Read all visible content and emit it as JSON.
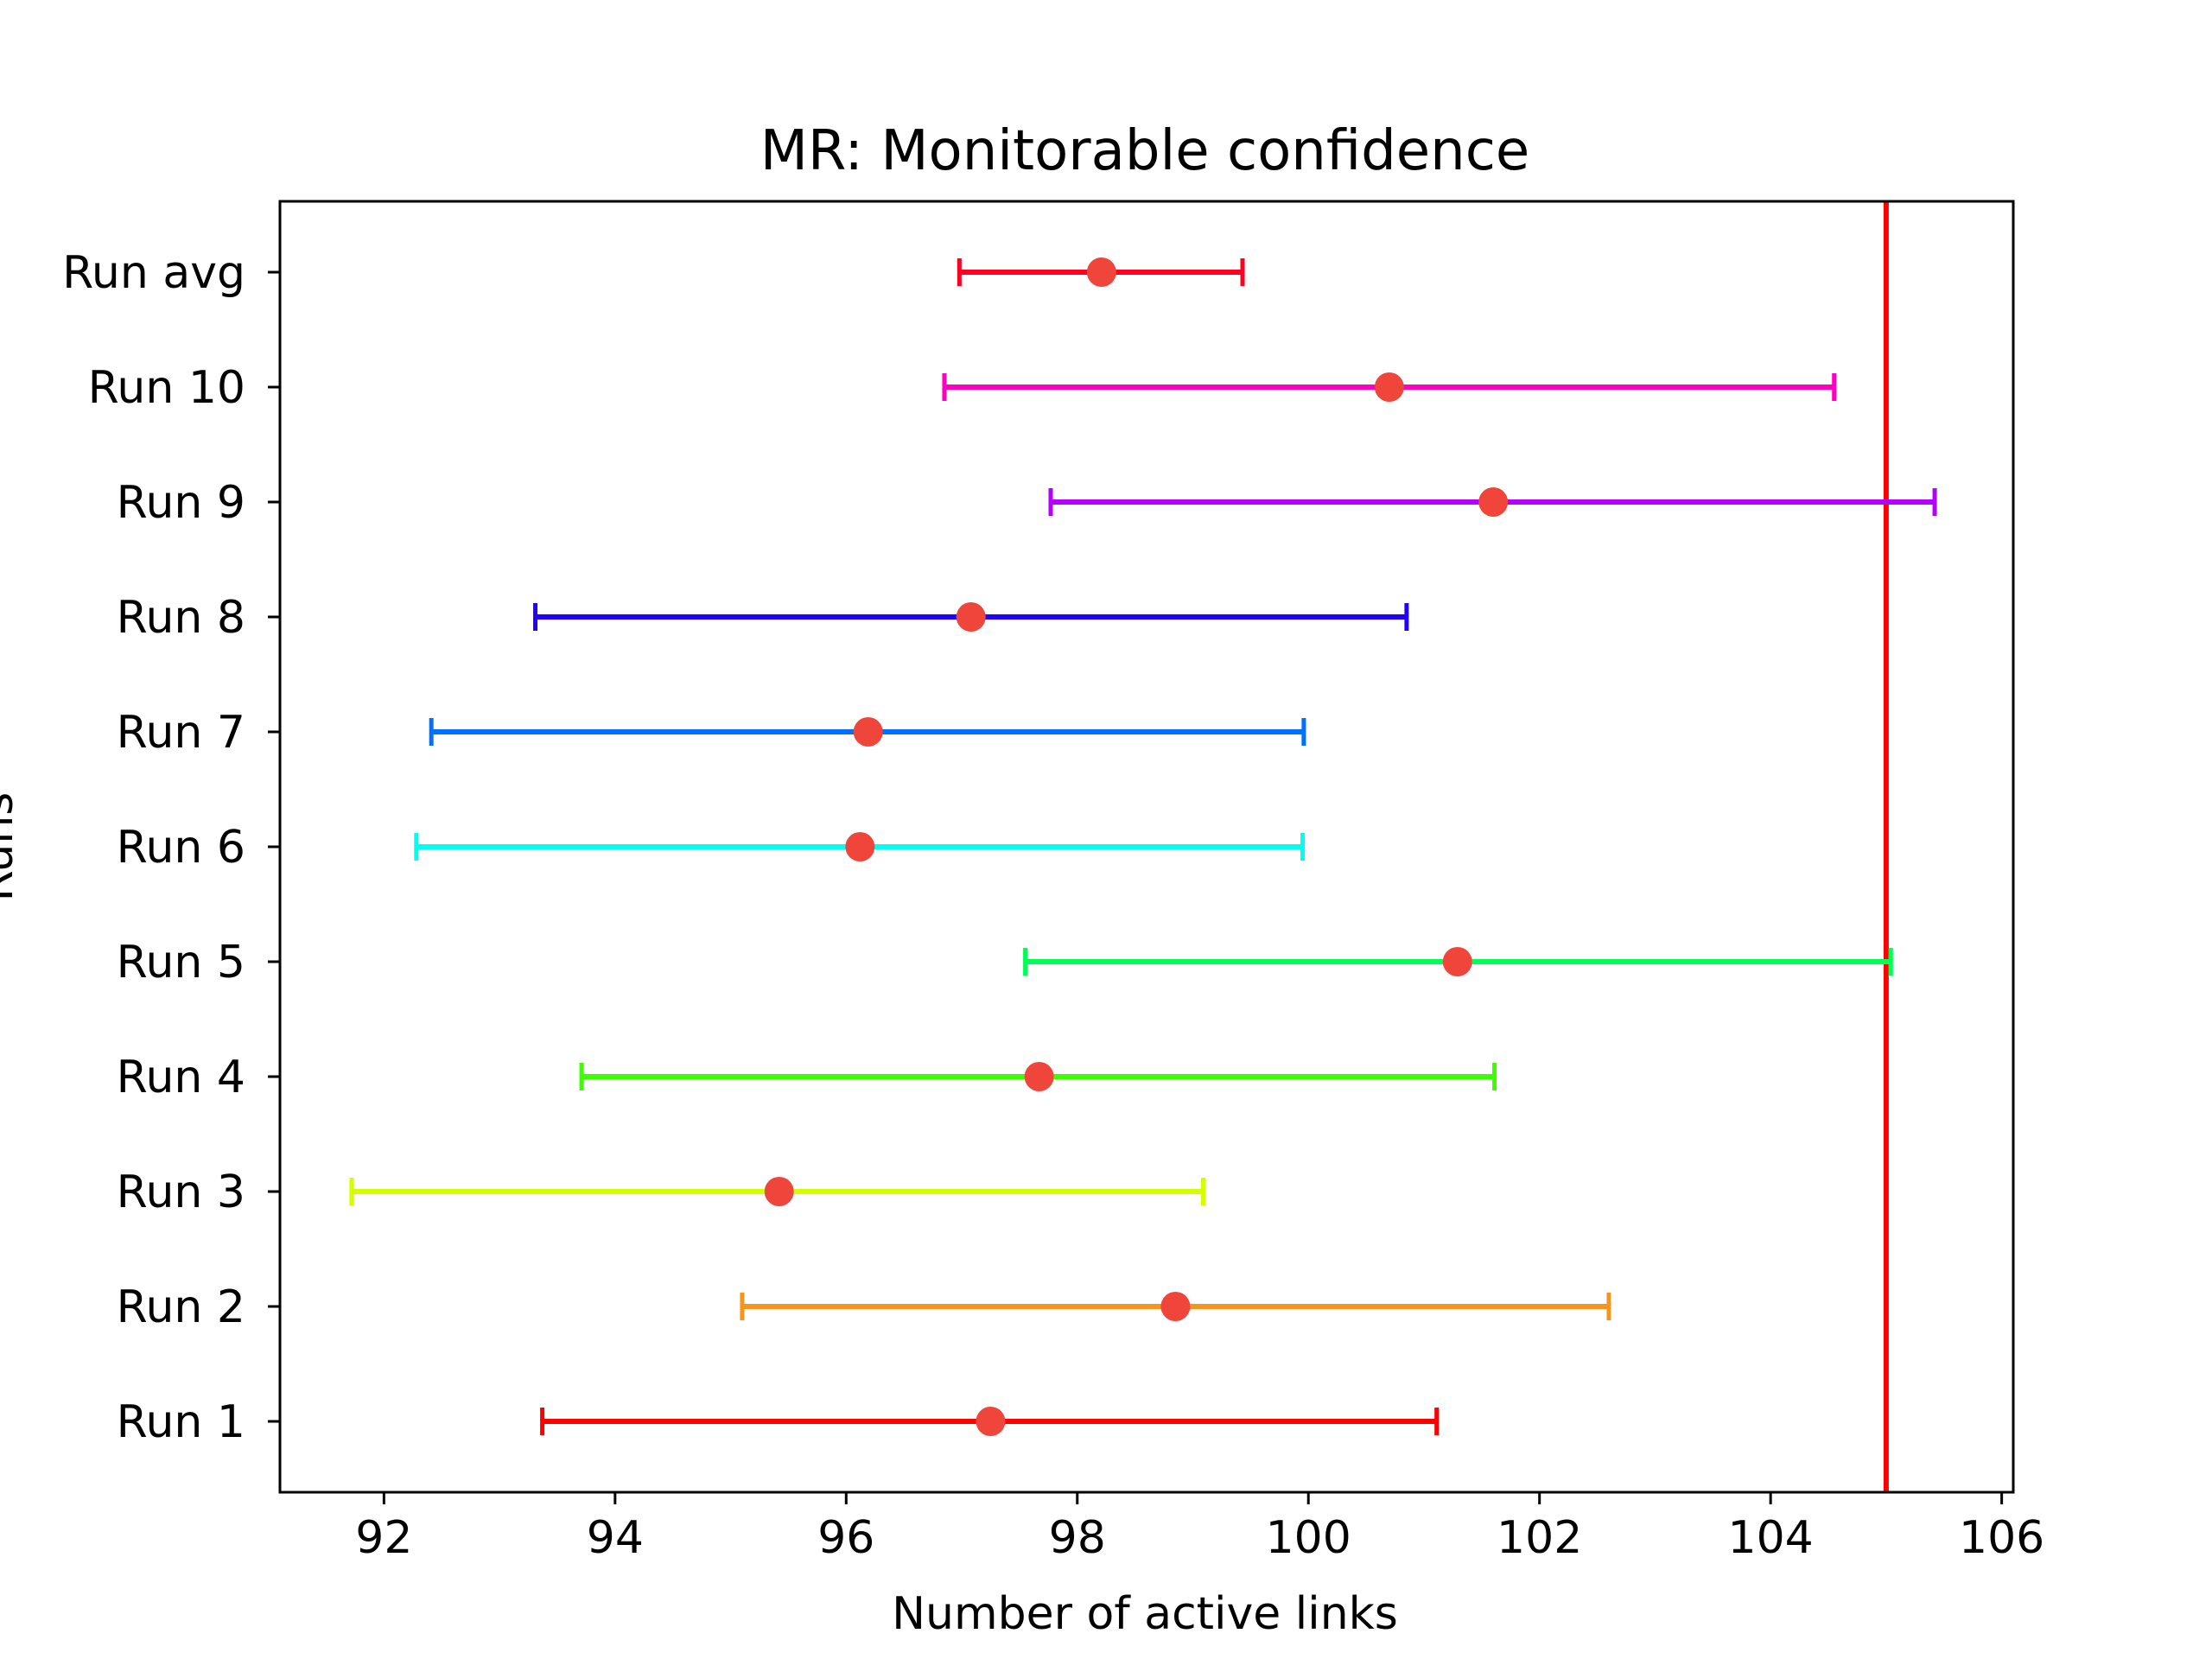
{
  "chart_data": {
    "type": "errorbar",
    "title": "MR: Monitorable confidence",
    "xlabel": "Number of active links",
    "ylabel": "Runs",
    "xlim": [
      91.1,
      106.1
    ],
    "xticks": [
      92,
      94,
      96,
      98,
      100,
      102,
      104,
      106
    ],
    "grid": false,
    "legend": "none",
    "marker_color": "#f0453a",
    "reference_line": {
      "x": 105.0,
      "color": "#ff0000"
    },
    "series": [
      {
        "label": "Run 1",
        "mean": 97.25,
        "lower": 93.37,
        "upper": 101.11,
        "color": "#ff0000"
      },
      {
        "label": "Run 2",
        "mean": 98.85,
        "lower": 95.1,
        "upper": 102.6,
        "color": "#f6951c"
      },
      {
        "label": "Run 3",
        "mean": 95.42,
        "lower": 91.72,
        "upper": 99.09,
        "color": "#d4ff00"
      },
      {
        "label": "Run 4",
        "mean": 97.67,
        "lower": 93.71,
        "upper": 101.61,
        "color": "#3cff00"
      },
      {
        "label": "Run 5",
        "mean": 101.29,
        "lower": 97.55,
        "upper": 105.04,
        "color": "#00ff55"
      },
      {
        "label": "Run 6",
        "mean": 96.12,
        "lower": 92.28,
        "upper": 99.95,
        "color": "#00fff0"
      },
      {
        "label": "Run 7",
        "mean": 96.19,
        "lower": 92.41,
        "upper": 99.96,
        "color": "#0070ff"
      },
      {
        "label": "Run 8",
        "mean": 97.08,
        "lower": 93.31,
        "upper": 100.85,
        "color": "#2200ff"
      },
      {
        "label": "Run 9",
        "mean": 101.6,
        "lower": 97.77,
        "upper": 105.42,
        "color": "#b400ff"
      },
      {
        "label": "Run 10",
        "mean": 100.7,
        "lower": 96.85,
        "upper": 104.55,
        "color": "#ff00c0"
      },
      {
        "label": "Run avg",
        "mean": 98.21,
        "lower": 96.98,
        "upper": 99.43,
        "color": "#ff0022"
      }
    ]
  }
}
